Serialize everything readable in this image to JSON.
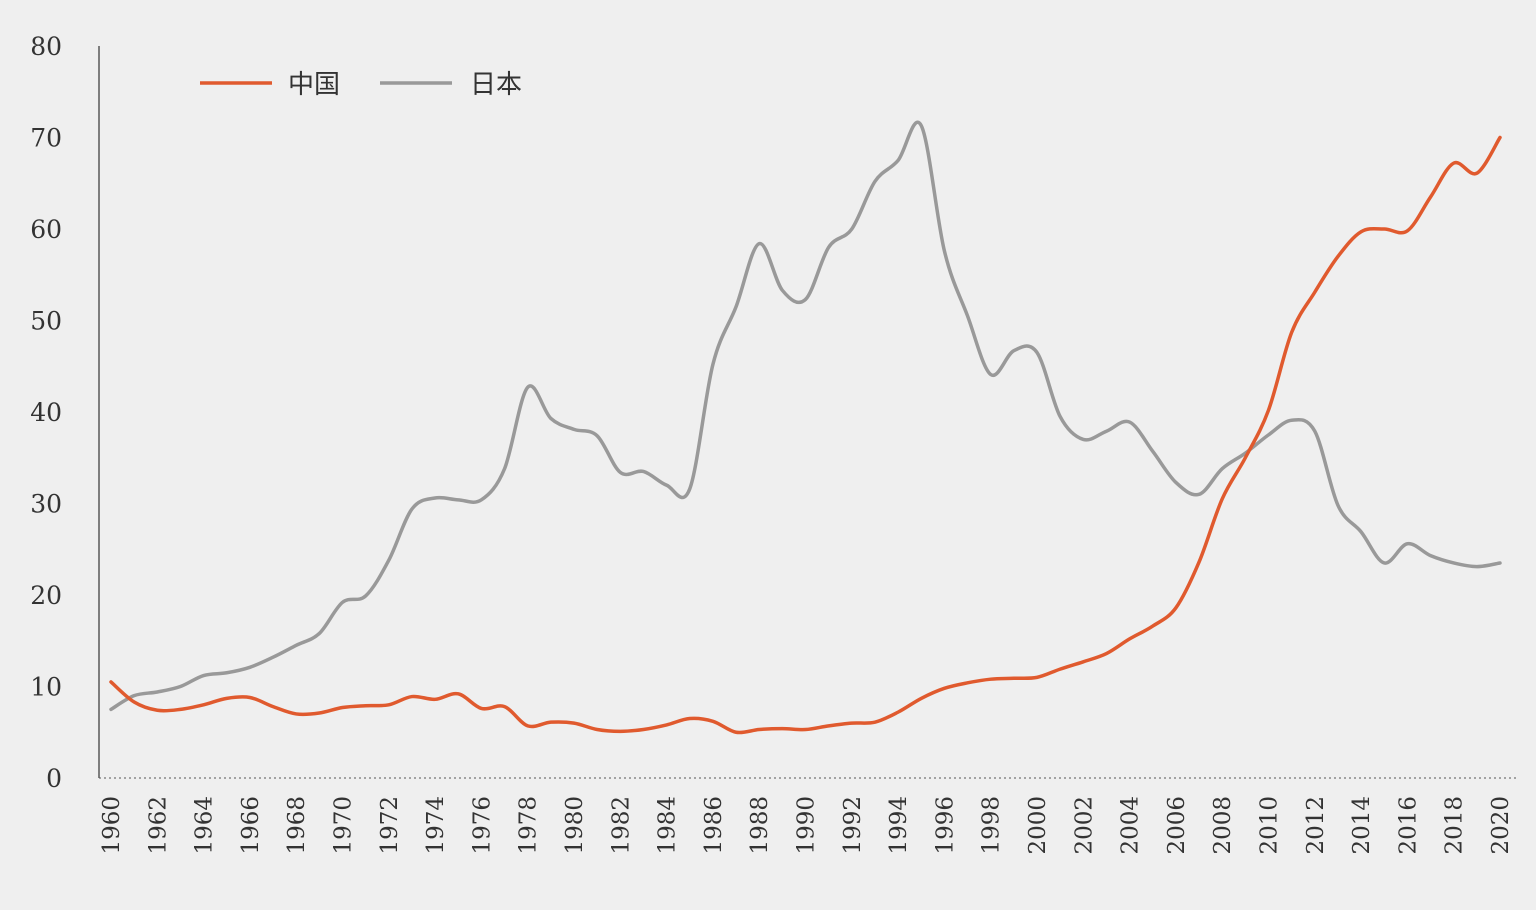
{
  "chart_data": {
    "type": "line",
    "title": "",
    "xlabel": "",
    "ylabel": "",
    "ylim": [
      0,
      80
    ],
    "xlim": [
      1960,
      2020
    ],
    "y_ticks": [
      "0",
      "10",
      "20",
      "30",
      "40",
      "50",
      "60",
      "70",
      "80"
    ],
    "x_ticks": [
      "1960",
      "1962",
      "1964",
      "1966",
      "1968",
      "1970",
      "1972",
      "1974",
      "1976",
      "1978",
      "1980",
      "1982",
      "1984",
      "1986",
      "1988",
      "1990",
      "1992",
      "1994",
      "1996",
      "1998",
      "2000",
      "2002",
      "2004",
      "2006",
      "2008",
      "2010",
      "2012",
      "2014",
      "2016",
      "2018",
      "2020"
    ],
    "grid": false,
    "legend_position": "top-left",
    "x": [
      1960,
      1961,
      1962,
      1963,
      1964,
      1965,
      1966,
      1967,
      1968,
      1969,
      1970,
      1971,
      1972,
      1973,
      1974,
      1975,
      1976,
      1977,
      1978,
      1979,
      1980,
      1981,
      1982,
      1983,
      1984,
      1985,
      1986,
      1987,
      1988,
      1989,
      1990,
      1991,
      1992,
      1993,
      1994,
      1995,
      1996,
      1997,
      1998,
      1999,
      2000,
      2001,
      2002,
      2003,
      2004,
      2005,
      2006,
      2007,
      2008,
      2009,
      2010,
      2011,
      2012,
      2013,
      2014,
      2015,
      2016,
      2017,
      2018,
      2019,
      2020
    ],
    "series": [
      {
        "name": "中国",
        "color": "#e05a2e",
        "values": [
          10.5,
          8.3,
          7.4,
          7.5,
          8.0,
          8.7,
          8.8,
          7.8,
          7.0,
          7.1,
          7.7,
          7.9,
          8.0,
          8.9,
          8.6,
          9.2,
          7.6,
          7.8,
          5.7,
          6.1,
          6.0,
          5.3,
          5.1,
          5.3,
          5.8,
          6.5,
          6.2,
          5.0,
          5.3,
          5.4,
          5.3,
          5.7,
          6.0,
          6.1,
          7.2,
          8.7,
          9.8,
          10.4,
          10.8,
          10.9,
          11.0,
          11.9,
          12.7,
          13.6,
          15.2,
          16.6,
          18.6,
          23.6,
          30.5,
          35.0,
          40.2,
          48.7,
          53.1,
          57.0,
          59.7,
          60.0,
          59.8,
          63.5,
          67.2,
          66.1,
          70.0
        ]
      },
      {
        "name": "日本",
        "color": "#999999",
        "values": [
          7.5,
          9.0,
          9.4,
          10.0,
          11.2,
          11.5,
          12.1,
          13.2,
          14.5,
          15.8,
          19.2,
          19.9,
          23.8,
          29.4,
          30.6,
          30.4,
          30.4,
          33.8,
          42.7,
          39.3,
          38.1,
          37.4,
          33.4,
          33.5,
          32.0,
          31.6,
          45.2,
          51.5,
          58.4,
          53.3,
          52.3,
          58.0,
          60.0,
          65.2,
          67.5,
          71.3,
          57.6,
          50.5,
          44.1,
          46.7,
          46.5,
          39.5,
          37.0,
          37.9,
          38.9,
          35.7,
          32.3,
          31.0,
          33.8,
          35.5,
          37.5,
          39.1,
          37.9,
          29.8,
          26.9,
          23.5,
          25.6,
          24.3,
          23.5,
          23.1,
          23.5
        ]
      }
    ]
  }
}
